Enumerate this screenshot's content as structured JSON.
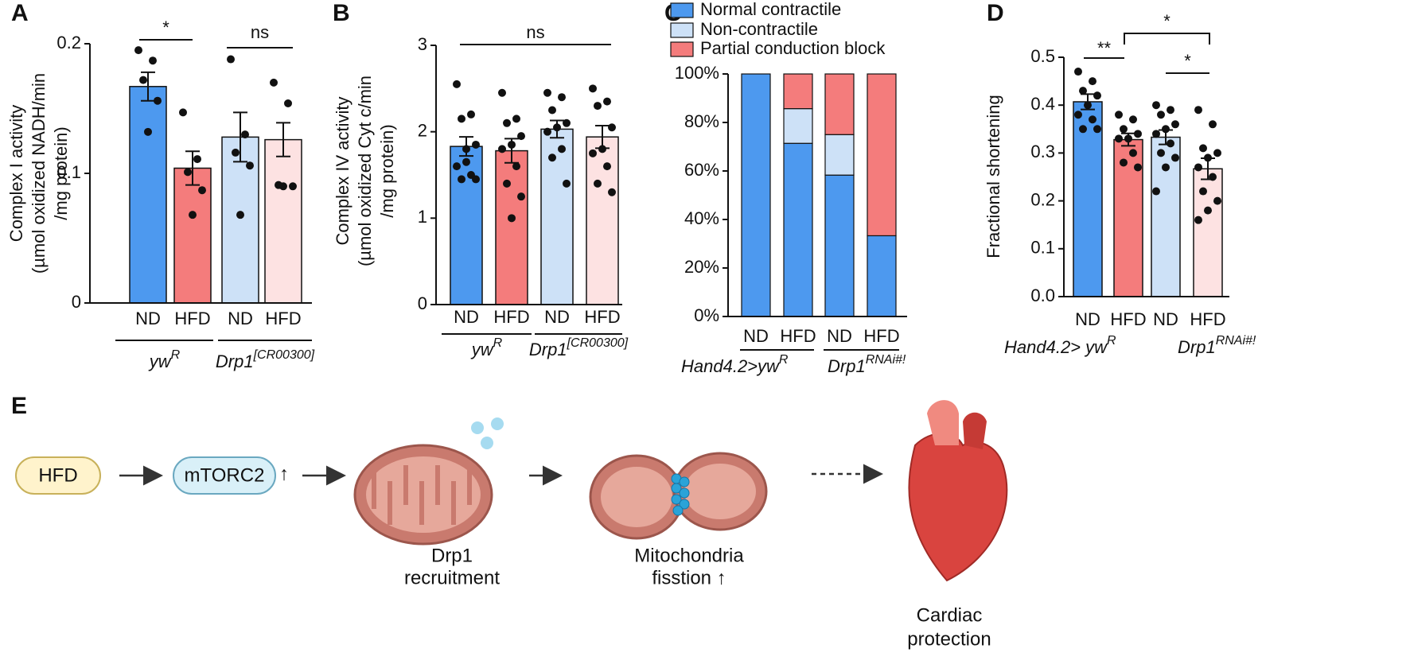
{
  "chart_data": [
    {
      "type": "bar",
      "panel": "A",
      "ylabel": [
        "Complex I activity",
        "(µmol oxidized NADH/min",
        "/mg protein)"
      ],
      "categories": [
        "ND",
        "HFD",
        "ND",
        "HFD"
      ],
      "groups": [
        {
          "name": "yw",
          "sup": "R"
        },
        {
          "name": "Drp1",
          "sup": "[CR00300]"
        }
      ],
      "colors": [
        "#4d99ef",
        "#f47c7c",
        "#cde1f7",
        "#fde2e2"
      ],
      "values": [
        0.167,
        0.104,
        0.128,
        0.126
      ],
      "errors": [
        0.011,
        0.013,
        0.019,
        0.013
      ],
      "points": [
        [
          0.195,
          0.187,
          0.172,
          0.156,
          0.132
        ],
        [
          0.147,
          0.111,
          0.101,
          0.087,
          0.068
        ],
        [
          0.188,
          0.13,
          0.116,
          0.106,
          0.068
        ],
        [
          0.17,
          0.154,
          0.091,
          0.09,
          0.09
        ]
      ],
      "ylim": [
        0,
        0.2
      ],
      "yticks": [
        0,
        0.1,
        0.2
      ],
      "annotations": [
        "*",
        "ns"
      ]
    },
    {
      "type": "bar",
      "panel": "B",
      "ylabel": [
        "Complex IV activity",
        "(µmol oxidized Cyt c/min",
        "/mg protein)"
      ],
      "categories": [
        "ND",
        "HFD",
        "ND",
        "HFD"
      ],
      "groups": [
        {
          "name": "yw",
          "sup": "R"
        },
        {
          "name": "Drp1",
          "sup": "[CR00300]"
        }
      ],
      "colors": [
        "#4d99ef",
        "#f47c7c",
        "#cde1f7",
        "#fde2e2"
      ],
      "values": [
        1.83,
        1.78,
        2.03,
        1.94
      ],
      "errors": [
        0.11,
        0.14,
        0.1,
        0.13
      ],
      "points": [
        [
          2.55,
          2.2,
          2.15,
          1.85,
          1.65,
          1.6,
          1.5,
          1.45,
          1.45,
          1.8
        ],
        [
          2.45,
          2.15,
          2.1,
          1.95,
          1.85,
          1.8,
          1.6,
          1.4,
          1.25,
          1.0
        ],
        [
          2.45,
          2.4,
          2.25,
          2.1,
          2.05,
          2.0,
          1.8,
          1.7,
          1.4
        ],
        [
          2.5,
          2.35,
          2.3,
          2.05,
          1.8,
          1.75,
          1.6,
          1.4,
          1.3
        ]
      ],
      "ylim": [
        0,
        3
      ],
      "yticks": [
        0,
        1,
        2,
        3
      ],
      "annotations": [
        "ns"
      ]
    },
    {
      "type": "stacked_bar",
      "panel": "C",
      "categories": [
        "ND",
        "HFD",
        "ND",
        "HFD"
      ],
      "groups": [
        {
          "name": "Hand4.2>yw",
          "sup": "R"
        },
        {
          "name": "Drp1",
          "sup": "RNAi#!"
        }
      ],
      "series": [
        {
          "name": "Normal contractile",
          "color": "#4d99ef",
          "values": [
            100,
            71.4,
            58.3,
            33.3
          ]
        },
        {
          "name": "Non-contractile",
          "color": "#cde1f7",
          "values": [
            0,
            14.3,
            16.7,
            0
          ]
        },
        {
          "name": "Partial conduction block",
          "color": "#f47c7c",
          "values": [
            0,
            14.3,
            25,
            66.7
          ]
        }
      ],
      "ylim": [
        0,
        100
      ],
      "yticks": [
        {
          "value": 0,
          "label": "0%"
        },
        {
          "value": 20,
          "label": "20%"
        },
        {
          "value": 40,
          "label": "40%"
        },
        {
          "value": 60,
          "label": "60%"
        },
        {
          "value": 80,
          "label": "80%"
        },
        {
          "value": 100,
          "label": "100%"
        }
      ]
    },
    {
      "type": "bar",
      "panel": "D",
      "ylabel": [
        "Fractional shortening"
      ],
      "categories": [
        "ND",
        "HFD",
        "ND",
        "HFD"
      ],
      "groups": [
        {
          "name": "Hand4.2> yw",
          "sup": "R"
        },
        {
          "name": "Drp1",
          "sup": "RNAi#!"
        }
      ],
      "colors": [
        "#4d99ef",
        "#f47c7c",
        "#cde1f7",
        "#fde2e2"
      ],
      "values": [
        0.407,
        0.328,
        0.333,
        0.267
      ],
      "errors": [
        0.016,
        0.013,
        0.015,
        0.022
      ],
      "points": [
        [
          0.47,
          0.45,
          0.43,
          0.42,
          0.4,
          0.38,
          0.37,
          0.35,
          0.35
        ],
        [
          0.38,
          0.37,
          0.35,
          0.34,
          0.33,
          0.33,
          0.3,
          0.28,
          0.27
        ],
        [
          0.4,
          0.39,
          0.38,
          0.36,
          0.35,
          0.34,
          0.32,
          0.3,
          0.29,
          0.27,
          0.22
        ],
        [
          0.39,
          0.36,
          0.31,
          0.3,
          0.29,
          0.27,
          0.25,
          0.22,
          0.2,
          0.18,
          0.16
        ]
      ],
      "ylim": [
        0,
        0.5
      ],
      "yticks": [
        {
          "value": 0,
          "label": "0.0"
        },
        0.1,
        0.2,
        0.3,
        0.4,
        0.5
      ],
      "annotations": [
        "**",
        "*",
        "*"
      ]
    }
  ],
  "diagram": {
    "panel": "E",
    "nodes": [
      {
        "label": "HFD"
      },
      {
        "label": "mTORC2",
        "arrow": "↑"
      }
    ],
    "captions": [
      [
        "Drp1",
        "recruitment"
      ],
      [
        "Mitochondria",
        "fisstion ↑"
      ],
      [
        "Cardiac",
        "protection"
      ]
    ]
  }
}
